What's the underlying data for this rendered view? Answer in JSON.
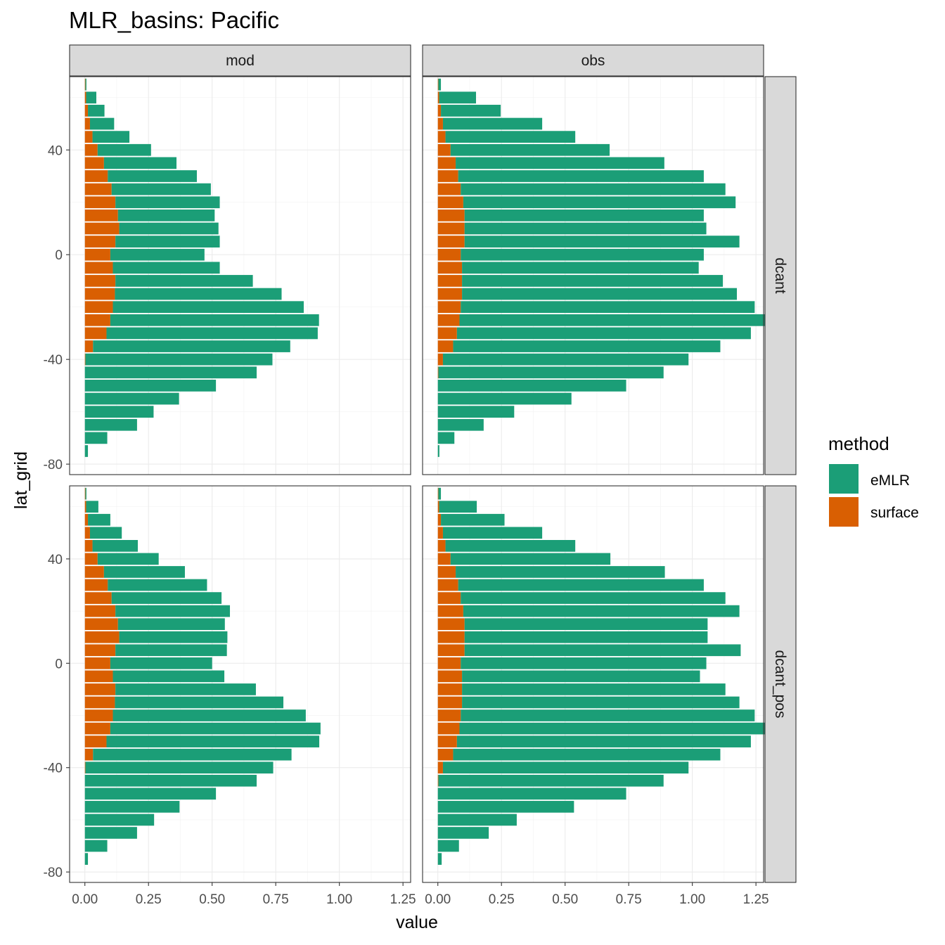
{
  "chart_data": {
    "type": "bar",
    "orientation": "horizontal",
    "title": "MLR_basins: Pacific",
    "xlabel": "value",
    "ylabel": "lat_grid",
    "xlim": [
      -0.06,
      1.28
    ],
    "ylim": [
      -84,
      68
    ],
    "x_ticks": [
      0,
      0.25,
      0.5,
      0.75,
      1.0,
      1.25
    ],
    "x_tick_labels": [
      "0.00",
      "0.25",
      "0.50",
      "0.75",
      "1.00",
      "1.25"
    ],
    "y_ticks": [
      -80,
      -40,
      0,
      40
    ],
    "y_tick_labels": [
      "-80",
      "-40",
      "0",
      "40"
    ],
    "grid": true,
    "facet_cols": [
      "mod",
      "obs"
    ],
    "facet_rows": [
      "dcant",
      "dcant_pos"
    ],
    "legend": {
      "title": "method",
      "position": "right",
      "entries": [
        {
          "label": "eMLR",
          "color": "#1b9e77"
        },
        {
          "label": "surface",
          "color": "#d95f02"
        }
      ]
    },
    "lat": [
      65,
      60,
      55,
      50,
      45,
      40,
      35,
      30,
      25,
      20,
      15,
      10,
      5,
      0,
      -5,
      -10,
      -15,
      -20,
      -25,
      -30,
      -35,
      -40,
      -45,
      -50,
      -55,
      -60,
      -65,
      -70,
      -75,
      -80
    ],
    "panels": [
      {
        "col": "mod",
        "row": "dcant",
        "surface": [
          0.002,
          0.005,
          0.012,
          0.02,
          0.03,
          0.05,
          0.075,
          0.09,
          0.105,
          0.12,
          0.13,
          0.135,
          0.12,
          0.1,
          0.11,
          0.12,
          0.118,
          0.11,
          0.1,
          0.085,
          0.032,
          0.002,
          0,
          0,
          0,
          0,
          0,
          0,
          0,
          0
        ],
        "emlr": [
          0.004,
          0.04,
          0.065,
          0.095,
          0.145,
          0.21,
          0.285,
          0.35,
          0.39,
          0.41,
          0.38,
          0.39,
          0.41,
          0.37,
          0.42,
          0.54,
          0.655,
          0.75,
          0.82,
          0.83,
          0.775,
          0.735,
          0.675,
          0.515,
          0.37,
          0.27,
          0.205,
          0.088,
          0.012,
          0
        ]
      },
      {
        "col": "obs",
        "row": "dcant",
        "surface": [
          0.002,
          0.005,
          0.012,
          0.02,
          0.03,
          0.05,
          0.07,
          0.08,
          0.09,
          0.1,
          0.105,
          0.105,
          0.105,
          0.09,
          0.095,
          0.095,
          0.095,
          0.09,
          0.085,
          0.075,
          0.06,
          0.02,
          0.002,
          0,
          0,
          0,
          0,
          0,
          0,
          0
        ],
        "emlr": [
          0.01,
          0.145,
          0.235,
          0.39,
          0.51,
          0.625,
          0.82,
          0.965,
          1.04,
          1.07,
          0.94,
          0.95,
          1.08,
          0.955,
          0.93,
          1.025,
          1.08,
          1.155,
          1.21,
          1.155,
          1.05,
          0.965,
          0.885,
          0.74,
          0.525,
          0.3,
          0.18,
          0.065,
          0.006,
          0
        ]
      },
      {
        "col": "mod",
        "row": "dcant_pos",
        "surface": [
          0.002,
          0.005,
          0.012,
          0.02,
          0.03,
          0.05,
          0.075,
          0.09,
          0.105,
          0.12,
          0.13,
          0.135,
          0.12,
          0.1,
          0.11,
          0.12,
          0.118,
          0.11,
          0.1,
          0.085,
          0.032,
          0.002,
          0,
          0,
          0,
          0,
          0,
          0,
          0,
          0
        ],
        "emlr": [
          0.004,
          0.048,
          0.088,
          0.125,
          0.178,
          0.24,
          0.318,
          0.39,
          0.432,
          0.45,
          0.42,
          0.425,
          0.438,
          0.4,
          0.438,
          0.552,
          0.662,
          0.758,
          0.826,
          0.836,
          0.78,
          0.738,
          0.675,
          0.515,
          0.372,
          0.272,
          0.205,
          0.088,
          0.012,
          0
        ]
      },
      {
        "col": "obs",
        "row": "dcant_pos",
        "surface": [
          0.002,
          0.005,
          0.012,
          0.02,
          0.03,
          0.05,
          0.07,
          0.08,
          0.09,
          0.1,
          0.105,
          0.105,
          0.105,
          0.09,
          0.095,
          0.095,
          0.095,
          0.09,
          0.085,
          0.075,
          0.06,
          0.02,
          0.002,
          0,
          0,
          0,
          0,
          0,
          0,
          0
        ],
        "emlr": [
          0.01,
          0.148,
          0.25,
          0.39,
          0.51,
          0.628,
          0.822,
          0.965,
          1.04,
          1.085,
          0.955,
          0.955,
          1.085,
          0.965,
          0.935,
          1.035,
          1.09,
          1.155,
          1.21,
          1.155,
          1.05,
          0.965,
          0.885,
          0.74,
          0.535,
          0.31,
          0.2,
          0.083,
          0.015,
          0
        ]
      }
    ]
  }
}
